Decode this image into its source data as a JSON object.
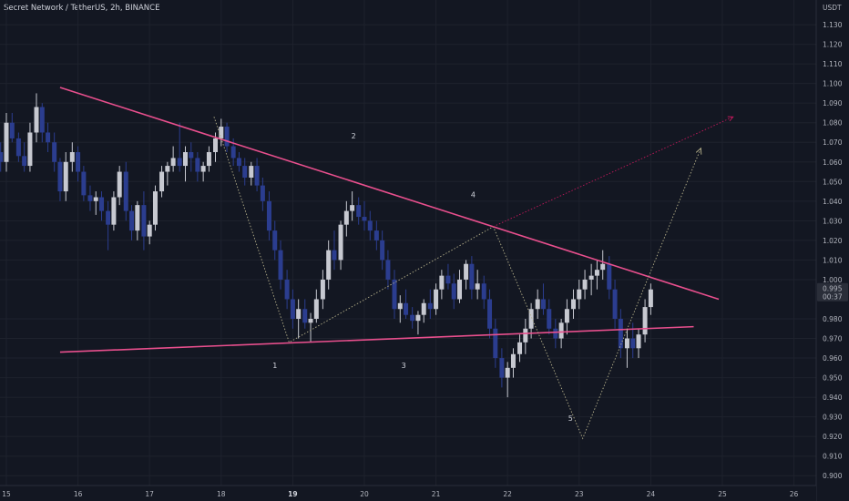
{
  "header": {
    "title": "Secret Network / TetherUS, 2h, BINANCE"
  },
  "chart_data": {
    "type": "candlestick",
    "currency_label": "USDT",
    "ylim": [
      0.895,
      1.137
    ],
    "price_ticks": [
      "1.130",
      "1.120",
      "1.110",
      "1.100",
      "1.090",
      "1.080",
      "1.070",
      "1.060",
      "1.050",
      "1.040",
      "1.030",
      "1.020",
      "1.010",
      "1.000",
      "0.980",
      "0.970",
      "0.960",
      "0.950",
      "0.940",
      "0.930",
      "0.920",
      "0.910",
      "0.900"
    ],
    "price_tick_values": [
      1.13,
      1.12,
      1.11,
      1.1,
      1.09,
      1.08,
      1.07,
      1.06,
      1.05,
      1.04,
      1.03,
      1.02,
      1.01,
      1.0,
      0.98,
      0.97,
      0.96,
      0.95,
      0.94,
      0.93,
      0.92,
      0.91,
      0.9
    ],
    "current_price": "0.995",
    "current_price_value": 0.995,
    "countdown": "00:37",
    "time_ticks": [
      {
        "label": "15",
        "day": 15,
        "bold": false
      },
      {
        "label": "16",
        "day": 16,
        "bold": false
      },
      {
        "label": "17",
        "day": 17,
        "bold": false
      },
      {
        "label": "18",
        "day": 18,
        "bold": false
      },
      {
        "label": "19",
        "day": 19,
        "bold": true
      },
      {
        "label": "20",
        "day": 20,
        "bold": false
      },
      {
        "label": "21",
        "day": 21,
        "bold": false
      },
      {
        "label": "22",
        "day": 22,
        "bold": false
      },
      {
        "label": "23",
        "day": 23,
        "bold": false
      },
      {
        "label": "24",
        "day": 24,
        "bold": false
      },
      {
        "label": "25",
        "day": 25,
        "bold": false
      },
      {
        "label": "26",
        "day": 26,
        "bold": false
      }
    ],
    "xlim": [
      15.0,
      26.4
    ],
    "candles": [
      [
        14.92,
        1.065,
        1.07,
        1.055,
        1.06
      ],
      [
        15.0,
        1.06,
        1.085,
        1.055,
        1.08
      ],
      [
        15.08,
        1.08,
        1.085,
        1.07,
        1.072
      ],
      [
        15.17,
        1.072,
        1.075,
        1.06,
        1.063
      ],
      [
        15.25,
        1.063,
        1.07,
        1.055,
        1.058
      ],
      [
        15.33,
        1.058,
        1.08,
        1.055,
        1.075
      ],
      [
        15.42,
        1.075,
        1.095,
        1.07,
        1.088
      ],
      [
        15.5,
        1.088,
        1.09,
        1.07,
        1.075
      ],
      [
        15.58,
        1.075,
        1.08,
        1.065,
        1.07
      ],
      [
        15.67,
        1.07,
        1.075,
        1.055,
        1.06
      ],
      [
        15.75,
        1.06,
        1.062,
        1.04,
        1.045
      ],
      [
        15.83,
        1.045,
        1.065,
        1.04,
        1.06
      ],
      [
        15.92,
        1.06,
        1.07,
        1.055,
        1.065
      ],
      [
        16.0,
        1.065,
        1.068,
        1.05,
        1.055
      ],
      [
        16.08,
        1.055,
        1.058,
        1.04,
        1.043
      ],
      [
        16.17,
        1.043,
        1.048,
        1.035,
        1.04
      ],
      [
        16.25,
        1.04,
        1.045,
        1.033,
        1.042
      ],
      [
        16.33,
        1.042,
        1.045,
        1.03,
        1.035
      ],
      [
        16.42,
        1.035,
        1.04,
        1.015,
        1.028
      ],
      [
        16.5,
        1.028,
        1.045,
        1.025,
        1.042
      ],
      [
        16.58,
        1.042,
        1.058,
        1.038,
        1.055
      ],
      [
        16.67,
        1.055,
        1.06,
        1.03,
        1.035
      ],
      [
        16.75,
        1.035,
        1.038,
        1.02,
        1.025
      ],
      [
        16.83,
        1.025,
        1.04,
        1.02,
        1.038
      ],
      [
        16.92,
        1.038,
        1.045,
        1.015,
        1.022
      ],
      [
        17.0,
        1.022,
        1.03,
        1.018,
        1.028
      ],
      [
        17.08,
        1.028,
        1.048,
        1.025,
        1.045
      ],
      [
        17.17,
        1.045,
        1.058,
        1.042,
        1.055
      ],
      [
        17.25,
        1.055,
        1.06,
        1.048,
        1.058
      ],
      [
        17.33,
        1.058,
        1.068,
        1.055,
        1.062
      ],
      [
        17.42,
        1.062,
        1.08,
        1.055,
        1.058
      ],
      [
        17.5,
        1.058,
        1.068,
        1.05,
        1.065
      ],
      [
        17.58,
        1.065,
        1.07,
        1.055,
        1.062
      ],
      [
        17.67,
        1.062,
        1.065,
        1.05,
        1.055
      ],
      [
        17.75,
        1.055,
        1.06,
        1.05,
        1.058
      ],
      [
        17.83,
        1.058,
        1.068,
        1.055,
        1.065
      ],
      [
        17.92,
        1.065,
        1.075,
        1.06,
        1.072
      ],
      [
        18.0,
        1.072,
        1.082,
        1.068,
        1.078
      ],
      [
        18.08,
        1.078,
        1.08,
        1.065,
        1.068
      ],
      [
        18.17,
        1.068,
        1.072,
        1.058,
        1.062
      ],
      [
        18.25,
        1.062,
        1.065,
        1.055,
        1.058
      ],
      [
        18.33,
        1.058,
        1.062,
        1.048,
        1.052
      ],
      [
        18.42,
        1.052,
        1.06,
        1.048,
        1.058
      ],
      [
        18.5,
        1.058,
        1.062,
        1.045,
        1.048
      ],
      [
        18.58,
        1.048,
        1.052,
        1.035,
        1.04
      ],
      [
        18.67,
        1.04,
        1.045,
        1.02,
        1.025
      ],
      [
        18.75,
        1.025,
        1.03,
        1.01,
        1.015
      ],
      [
        18.83,
        1.015,
        1.02,
        0.995,
        1.0
      ],
      [
        18.92,
        1.0,
        1.005,
        0.985,
        0.99
      ],
      [
        19.0,
        0.99,
        0.995,
        0.975,
        0.98
      ],
      [
        19.08,
        0.98,
        0.99,
        0.97,
        0.985
      ],
      [
        19.17,
        0.985,
        0.99,
        0.975,
        0.978
      ],
      [
        19.25,
        0.978,
        0.983,
        0.968,
        0.98
      ],
      [
        19.33,
        0.98,
        0.995,
        0.978,
        0.99
      ],
      [
        19.42,
        0.99,
        1.005,
        0.985,
        1.0
      ],
      [
        19.5,
        1.0,
        1.02,
        0.995,
        1.015
      ],
      [
        19.58,
        1.015,
        1.025,
        1.005,
        1.01
      ],
      [
        19.67,
        1.01,
        1.03,
        1.005,
        1.028
      ],
      [
        19.75,
        1.028,
        1.04,
        1.022,
        1.035
      ],
      [
        19.83,
        1.035,
        1.045,
        1.03,
        1.038
      ],
      [
        19.92,
        1.038,
        1.042,
        1.028,
        1.032
      ],
      [
        20.0,
        1.032,
        1.04,
        1.025,
        1.03
      ],
      [
        20.08,
        1.03,
        1.035,
        1.02,
        1.025
      ],
      [
        20.17,
        1.025,
        1.03,
        1.015,
        1.02
      ],
      [
        20.25,
        1.02,
        1.025,
        1.005,
        1.01
      ],
      [
        20.33,
        1.01,
        1.015,
        0.995,
        1.0
      ],
      [
        20.42,
        1.0,
        1.005,
        0.98,
        0.985
      ],
      [
        20.5,
        0.985,
        0.992,
        0.978,
        0.988
      ],
      [
        20.58,
        0.988,
        0.995,
        0.98,
        0.982
      ],
      [
        20.67,
        0.982,
        0.986,
        0.975,
        0.979
      ],
      [
        20.75,
        0.979,
        0.984,
        0.972,
        0.982
      ],
      [
        20.83,
        0.982,
        0.99,
        0.978,
        0.988
      ],
      [
        20.92,
        0.988,
        0.995,
        0.98,
        0.985
      ],
      [
        21.0,
        0.985,
        0.998,
        0.982,
        0.995
      ],
      [
        21.08,
        0.995,
        1.005,
        0.99,
        1.002
      ],
      [
        21.17,
        1.002,
        1.008,
        0.995,
        0.998
      ],
      [
        21.25,
        0.998,
        1.003,
        0.985,
        0.99
      ],
      [
        21.33,
        0.99,
        1.005,
        0.988,
        1.0
      ],
      [
        21.42,
        1.0,
        1.01,
        0.995,
        1.008
      ],
      [
        21.5,
        1.008,
        1.012,
        0.99,
        0.995
      ],
      [
        21.58,
        0.995,
        1.005,
        0.99,
        0.998
      ],
      [
        21.67,
        0.998,
        1.002,
        0.985,
        0.99
      ],
      [
        21.75,
        0.99,
        0.995,
        0.97,
        0.975
      ],
      [
        21.83,
        0.975,
        0.98,
        0.955,
        0.96
      ],
      [
        21.92,
        0.96,
        0.965,
        0.945,
        0.95
      ],
      [
        22.0,
        0.95,
        0.958,
        0.94,
        0.955
      ],
      [
        22.08,
        0.955,
        0.965,
        0.95,
        0.962
      ],
      [
        22.17,
        0.962,
        0.972,
        0.958,
        0.968
      ],
      [
        22.25,
        0.968,
        0.98,
        0.962,
        0.975
      ],
      [
        22.33,
        0.975,
        0.988,
        0.97,
        0.985
      ],
      [
        22.42,
        0.985,
        0.995,
        0.98,
        0.99
      ],
      [
        22.5,
        0.99,
        0.998,
        0.982,
        0.985
      ],
      [
        22.58,
        0.985,
        0.99,
        0.972,
        0.975
      ],
      [
        22.67,
        0.975,
        0.98,
        0.965,
        0.97
      ],
      [
        22.75,
        0.97,
        0.98,
        0.965,
        0.978
      ],
      [
        22.83,
        0.978,
        0.99,
        0.972,
        0.985
      ],
      [
        22.92,
        0.985,
        0.995,
        0.98,
        0.99
      ],
      [
        23.0,
        0.99,
        1.0,
        0.985,
        0.995
      ],
      [
        23.08,
        0.995,
        1.005,
        0.99,
        1.0
      ],
      [
        23.17,
        1.0,
        1.008,
        0.992,
        1.002
      ],
      [
        23.25,
        1.002,
        1.01,
        0.995,
        1.005
      ],
      [
        23.33,
        1.005,
        1.015,
        1.0,
        1.008
      ],
      [
        23.42,
        1.008,
        1.012,
        0.99,
        0.995
      ],
      [
        23.5,
        0.995,
        1.0,
        0.975,
        0.98
      ],
      [
        23.58,
        0.98,
        0.985,
        0.96,
        0.965
      ],
      [
        23.67,
        0.965,
        0.975,
        0.955,
        0.97
      ],
      [
        23.75,
        0.97,
        0.978,
        0.96,
        0.965
      ],
      [
        23.83,
        0.965,
        0.975,
        0.96,
        0.972
      ],
      [
        23.92,
        0.972,
        0.99,
        0.968,
        0.986
      ],
      [
        24.0,
        0.986,
        0.998,
        0.982,
        0.995
      ]
    ],
    "trendlines": [
      {
        "name": "upper",
        "from": [
          15.75,
          1.098
        ],
        "to": [
          24.95,
          0.99
        ],
        "color": "#e84f8d"
      },
      {
        "name": "lower",
        "from": [
          15.75,
          0.963
        ],
        "to": [
          24.6,
          0.976
        ],
        "color": "#e84f8d"
      }
    ],
    "wave_path": [
      [
        17.9,
        1.083
      ],
      [
        18.95,
        0.968
      ],
      [
        21.8,
        1.027
      ],
      [
        23.05,
        0.919
      ],
      [
        24.7,
        1.067
      ]
    ],
    "projection": {
      "from": [
        21.8,
        1.027
      ],
      "to": [
        25.15,
        1.083
      ],
      "color": "#c2185b"
    },
    "wave_labels": [
      {
        "text": "2",
        "x": 19.85,
        "y": 1.072
      },
      {
        "text": "4",
        "x": 21.52,
        "y": 1.042
      },
      {
        "text": "1",
        "x": 18.75,
        "y": 0.955
      },
      {
        "text": "3",
        "x": 20.55,
        "y": 0.955
      },
      {
        "text": "5",
        "x": 22.88,
        "y": 0.928
      }
    ],
    "colors": {
      "up": "#c7c9d1",
      "down": "#2b3d8f",
      "trend": "#e84f8d",
      "grid": "#1e222d",
      "background": "#131722"
    }
  }
}
